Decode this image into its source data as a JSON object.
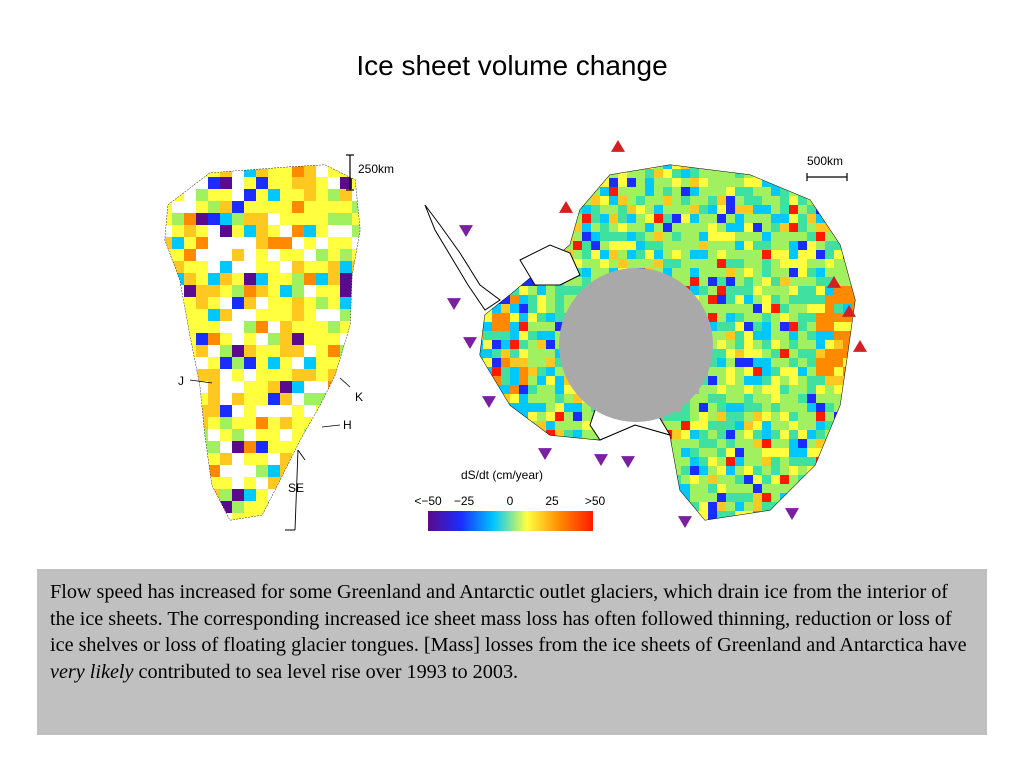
{
  "slide": {
    "title": "Ice sheet volume change"
  },
  "greenland": {
    "scale_label": "250km",
    "glacier_labels": {
      "j": "J",
      "k": "K",
      "h": "H",
      "se": "SE"
    }
  },
  "antarctica": {
    "scale_label": "500km",
    "markers": [
      {
        "type": "triangle-up",
        "color": "#d42020"
      },
      {
        "type": "triangle-down",
        "color": "#7a1fa0"
      }
    ]
  },
  "colorbar": {
    "title": "dS/dt (cm/year)",
    "tick_labels": [
      "<−50",
      "−25",
      "0",
      "25",
      ">50"
    ],
    "range": [
      -50,
      50
    ],
    "colors": [
      "#5a0a8c",
      "#1a2cff",
      "#00c8ff",
      "#ffff40",
      "#ff8a00",
      "#ff1a00"
    ]
  },
  "caption": {
    "part1": "Flow speed has increased for some Greenland and Antarctic outlet glaciers, which drain ice from the interior of the ice sheets. The corresponding increased ice sheet mass loss has often followed thinning, reduction or loss of ice shelves or loss of floating glacier tongues. [Mass] losses from the ice sheets of Greenland and Antarctica have ",
    "emphasis": "very likely",
    "part2": " contributed to sea level rise over 1993 to 2003."
  }
}
